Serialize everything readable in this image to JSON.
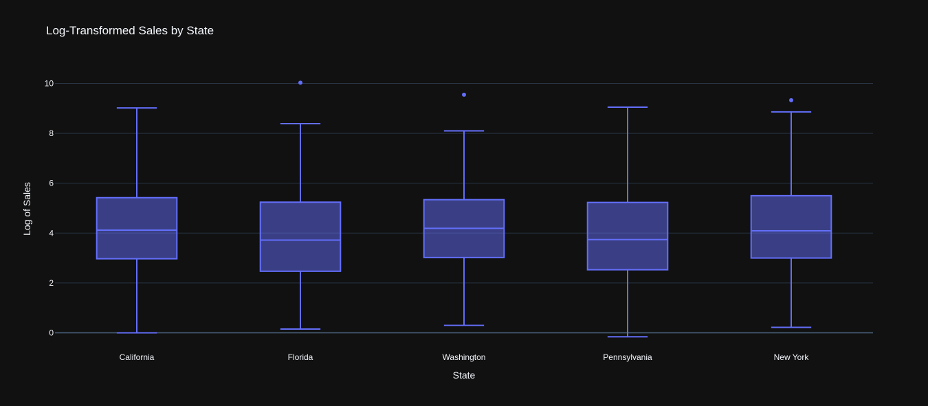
{
  "chart_data": {
    "type": "box",
    "title": "Log-Transformed Sales by State",
    "xlabel": "State",
    "ylabel": "Log of Sales",
    "ylim": [
      -0.6,
      11.0
    ],
    "yticks": [
      0,
      2,
      4,
      6,
      8,
      10
    ],
    "grid": true,
    "legend": "none",
    "color": "#636efa",
    "categories": [
      "California",
      "Florida",
      "Washington",
      "Pennsylvania",
      "New York"
    ],
    "series": [
      {
        "boxes": [
          {
            "category": "California",
            "min": 0.0,
            "q1": 2.97,
            "median": 4.12,
            "q3": 5.42,
            "max": 9.02,
            "outliers": []
          },
          {
            "category": "Florida",
            "min": 0.15,
            "q1": 2.47,
            "median": 3.72,
            "q3": 5.24,
            "max": 8.39,
            "outliers": [
              10.03
            ]
          },
          {
            "category": "Washington",
            "min": 0.3,
            "q1": 3.02,
            "median": 4.19,
            "q3": 5.34,
            "max": 8.1,
            "outliers": [
              9.55
            ]
          },
          {
            "category": "Pennsylvania",
            "min": -0.16,
            "q1": 2.53,
            "median": 3.74,
            "q3": 5.23,
            "max": 9.05,
            "outliers": []
          },
          {
            "category": "New York",
            "min": 0.22,
            "q1": 3.0,
            "median": 4.09,
            "q3": 5.5,
            "max": 8.86,
            "outliers": [
              9.33
            ]
          }
        ]
      }
    ]
  }
}
